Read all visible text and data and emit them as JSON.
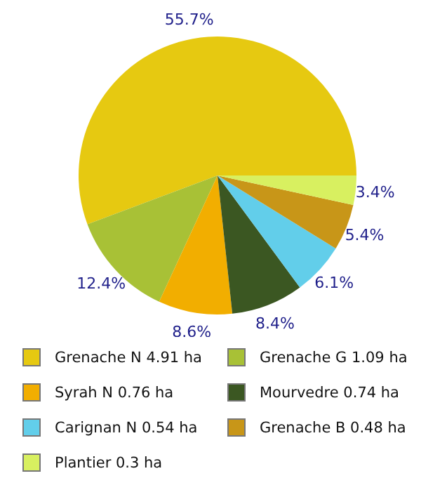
{
  "chart_data": {
    "type": "pie",
    "categories": [
      "Grenache N 4.91 ha",
      "Grenache G 1.09 ha",
      "Syrah N 0.76 ha",
      "Mourvedre 0.74 ha",
      "Carignan N 0.54 ha",
      "Grenache B 0.48 ha",
      "Plantier 0.3 ha"
    ],
    "values": [
      55.7,
      12.4,
      8.6,
      8.4,
      6.1,
      5.4,
      3.4
    ],
    "colors": [
      "#e6c911",
      "#a8c136",
      "#f2ae00",
      "#3b5722",
      "#62ceea",
      "#c89618",
      "#d8f060"
    ],
    "value_labels": [
      "55.7%",
      "12.4%",
      "8.6%",
      "8.4%",
      "6.1%",
      "5.4%",
      "3.4%"
    ],
    "legend": "bottom"
  }
}
